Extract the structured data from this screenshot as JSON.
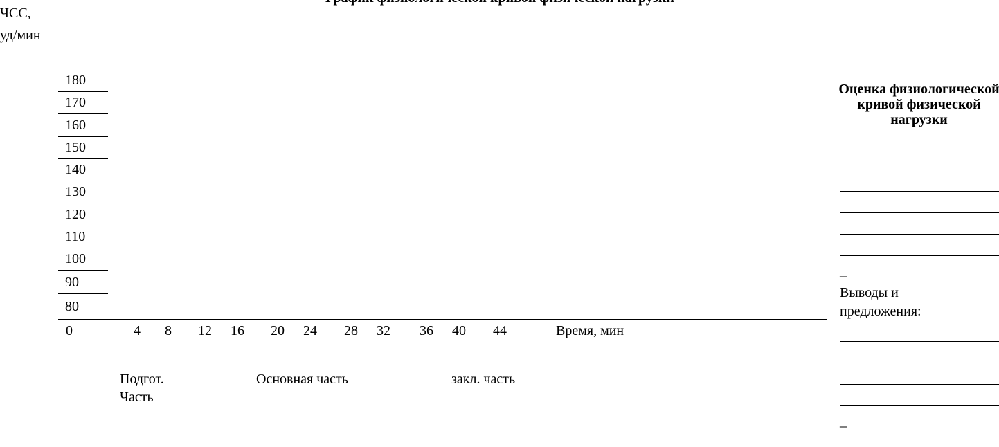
{
  "header": {
    "title_partial": "График физиологической кривой физической нагрузки"
  },
  "yaxis": {
    "label_line1": "ЧСС,",
    "label_line2": "уд/мин",
    "ticks": [
      "180",
      "170",
      "160",
      "150",
      "140",
      "130",
      "120",
      "110",
      "100",
      "90",
      "80"
    ],
    "zero": "0"
  },
  "xaxis": {
    "ticks": [
      "4",
      "8",
      "12",
      "16",
      "20",
      "24",
      "28",
      "32",
      "36",
      "40",
      "44"
    ],
    "label": "Время, мин"
  },
  "sections": {
    "prep_line1": "Подгот.",
    "prep_line2": "Часть",
    "main": "Основная часть",
    "final": "закл. часть"
  },
  "right_panel": {
    "eval_title": "Оценка физиологической кривой физической нагрузки",
    "dash1": "_",
    "conclusions_line1": "Выводы и",
    "conclusions_line2": "предложения:",
    "dash2": "_"
  }
}
